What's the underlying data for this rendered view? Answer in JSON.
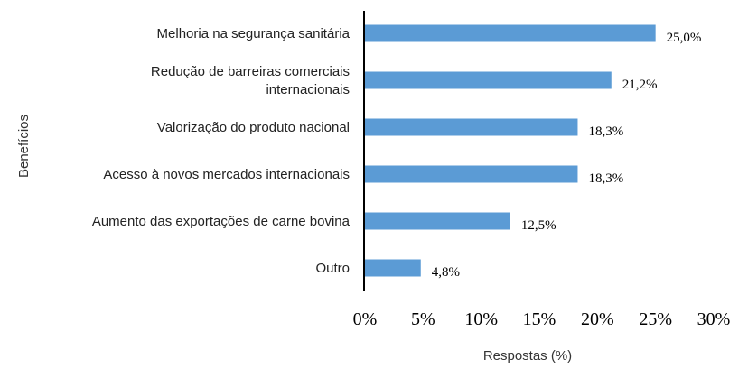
{
  "chart_data": {
    "type": "bar",
    "orientation": "horizontal",
    "title": "",
    "xlabel": "Respostas (%)",
    "ylabel": "Benefícios",
    "xlim": [
      0,
      30
    ],
    "x_ticks": [
      "0%",
      "5%",
      "10%",
      "15%",
      "20%",
      "25%",
      "30%"
    ],
    "grid": false,
    "bar_color": "#5b9bd5",
    "categories": [
      [
        "Melhoria na segurança sanitária"
      ],
      [
        "Redução de barreiras comerciais",
        "internacionais"
      ],
      [
        "Valorização do produto nacional"
      ],
      [
        "Acesso à novos mercados internacionais"
      ],
      [
        "Aumento das exportações de carne bovina"
      ],
      [
        "Outro"
      ]
    ],
    "values": [
      25.0,
      21.2,
      18.3,
      18.3,
      12.5,
      4.8
    ],
    "data_labels": [
      "25,0%",
      "21,2%",
      "18,3%",
      "18,3%",
      "12,5%",
      "4,8%"
    ]
  }
}
